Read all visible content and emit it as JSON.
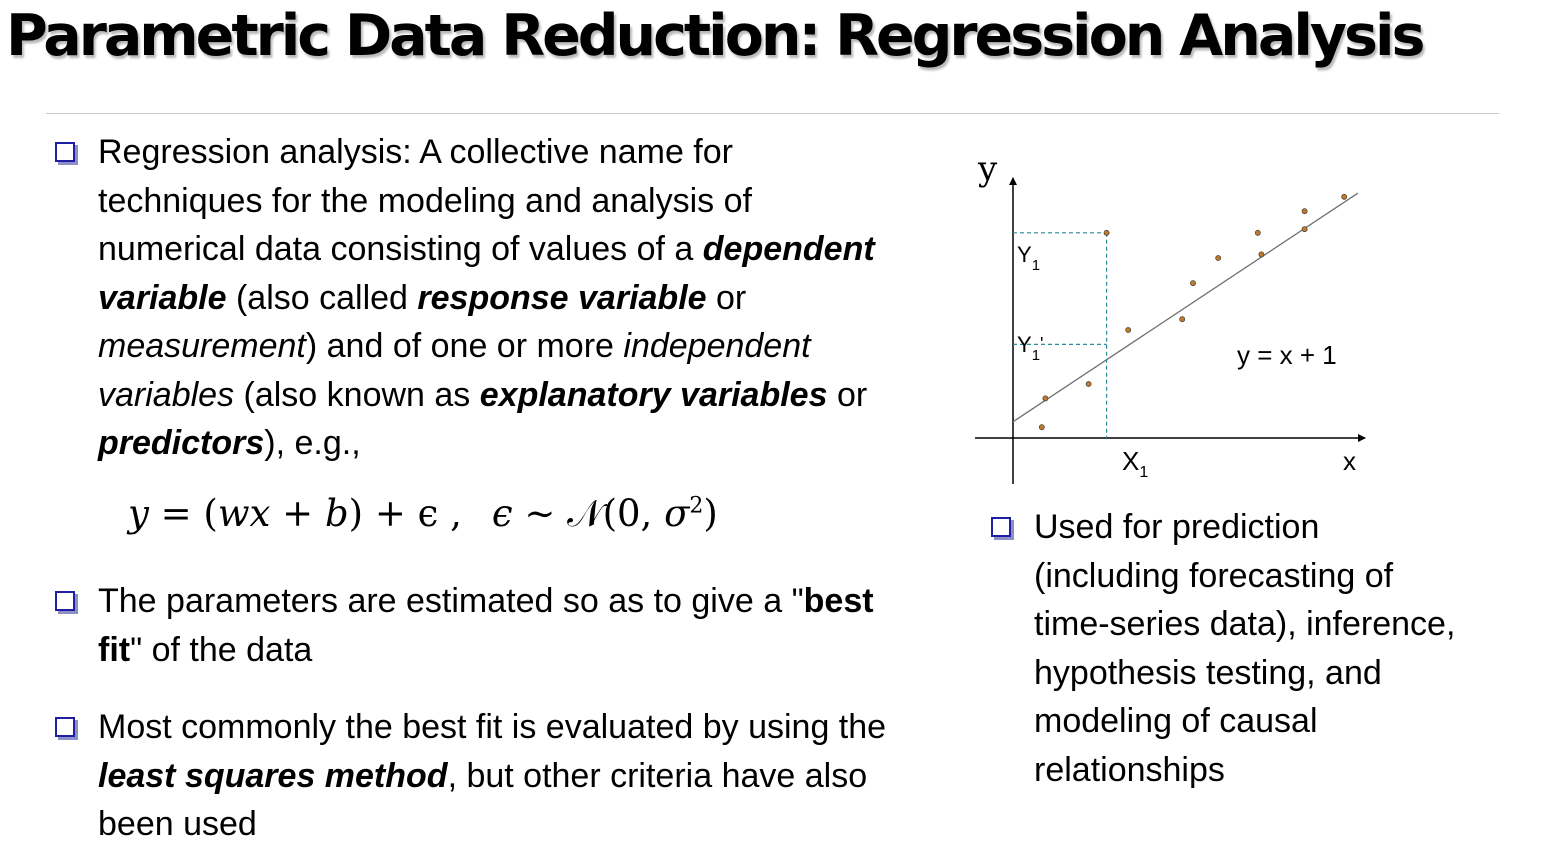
{
  "title": "Parametric Data Reduction: Regression Analysis",
  "bullet1": {
    "t1": "Regression analysis: A collective name for techniques for the modeling and analysis of numerical data consisting of values of a ",
    "t2": "dependent variable",
    "t3": " (also called ",
    "t4": "response variable",
    "t5": " or ",
    "t6": "measurement",
    "t7": ") and of one or more ",
    "t8": "independent variables",
    "t9": " (also known as ",
    "t10": "explanatory variables",
    "t11": " or ",
    "t12": "predictors",
    "t13": "), e.g.,"
  },
  "formula": {
    "lhs": "y",
    "eq": " = (",
    "w": "w",
    "x": "x",
    "plus": " + ",
    "b": "b",
    "rest": ") + ϵ ,",
    "eps": "ϵ",
    "sim": " ∼ ",
    "N": "𝒩",
    "args": "(0, ",
    "sigma": "σ",
    "sq": "2",
    "close": ")"
  },
  "bullet2": {
    "t1": "The parameters are estimated so as to give a \"",
    "t2": "best fit",
    "t3": "\" of the data"
  },
  "bullet3": {
    "t1": "Most commonly the best fit is evaluated by using the ",
    "t2": "least squares method",
    "t3": ", but other criteria have also been used"
  },
  "bullet4": {
    "t1": "Used for prediction (including forecasting of time-series data), inference, hypothesis testing, and modeling of causal relationships"
  },
  "chart_data": {
    "type": "scatter",
    "title": "",
    "xlabel": "x",
    "ylabel": "y",
    "xlim": [
      0,
      10
    ],
    "ylim": [
      0,
      7
    ],
    "grid": false,
    "line": {
      "label": "y = x + 1",
      "slope": 1,
      "intercept": 1
    },
    "annotations": {
      "x1_label": "X",
      "x1_sub": "1",
      "y1_label": "Y",
      "y1_sub": "1",
      "y1p_label": "Y",
      "y1p_sub": "1",
      "y1p_prime": "'"
    },
    "highlight_point": {
      "x": 2.6,
      "y": 5.7
    },
    "projection_point": {
      "x": 2.6,
      "y": 2.6
    },
    "point_color": "#c0782a",
    "points": [
      {
        "x": 0.8,
        "y": 0.3
      },
      {
        "x": 0.9,
        "y": 1.1
      },
      {
        "x": 2.1,
        "y": 1.5
      },
      {
        "x": 3.2,
        "y": 3.0
      },
      {
        "x": 4.7,
        "y": 3.3
      },
      {
        "x": 5.0,
        "y": 4.3
      },
      {
        "x": 5.7,
        "y": 5.0
      },
      {
        "x": 6.8,
        "y": 5.7
      },
      {
        "x": 6.9,
        "y": 5.1
      },
      {
        "x": 8.1,
        "y": 6.3
      },
      {
        "x": 8.1,
        "y": 5.8
      },
      {
        "x": 9.2,
        "y": 6.7
      }
    ]
  }
}
